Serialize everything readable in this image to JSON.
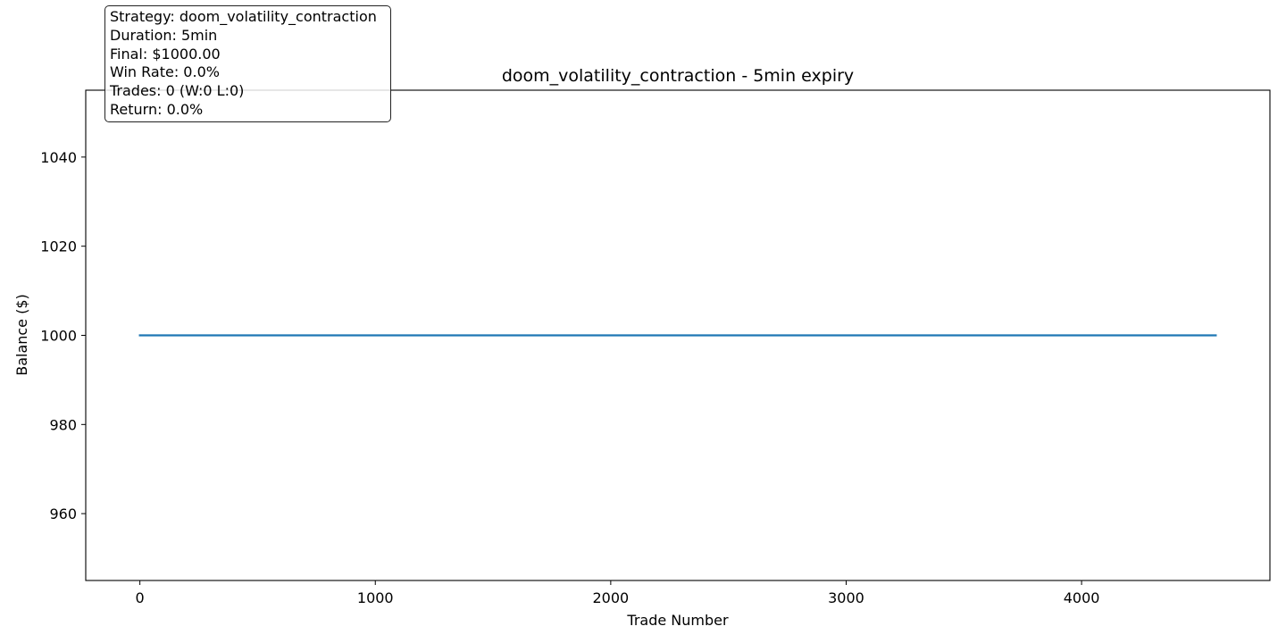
{
  "chart_data": {
    "type": "line",
    "title": "doom_volatility_contraction - 5min expiry",
    "xlabel": "Trade Number",
    "ylabel": "Balance ($)",
    "xlim": [
      -230,
      4800
    ],
    "ylim": [
      945,
      1055
    ],
    "x_ticks": [
      0,
      1000,
      2000,
      3000,
      4000
    ],
    "y_ticks": [
      960,
      980,
      1000,
      1020,
      1040
    ],
    "grid": false,
    "series": [
      {
        "x": [
          0,
          4570
        ],
        "y": [
          1000,
          1000
        ],
        "color": "#1f77b4"
      }
    ],
    "annotation": {
      "placement": "top-left",
      "lines": [
        "Strategy: doom_volatility_contraction",
        "Duration: 5min",
        "Final: $1000.00",
        "Win Rate: 0.0%",
        "Trades: 0 (W:0 L:0)",
        "Return: 0.0%"
      ]
    }
  }
}
